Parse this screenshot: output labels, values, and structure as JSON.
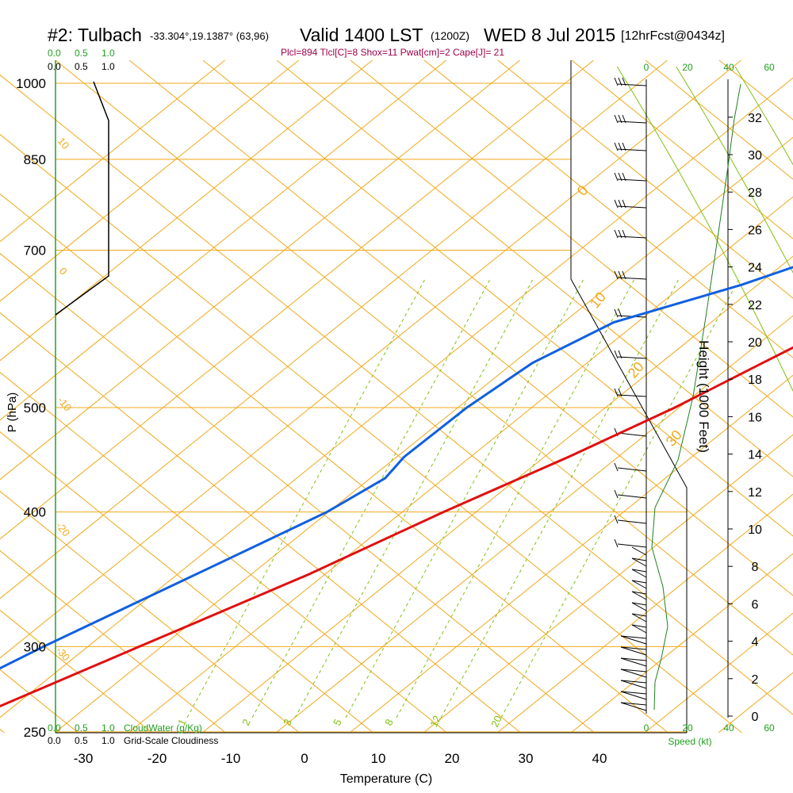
{
  "header": {
    "title_main": "#2: Tulbach",
    "location": "-33.304°,19.1387° (63,96)",
    "valid": "Valid 1400 LST",
    "zulu": "(1200Z)",
    "date": "WED 8 Jul 2015",
    "forecast": "[12hrFcst@0434z]",
    "indices": "Plcl=894 Tlcl[C]=8 Shox=11 Pwat[cm]=2 Cape[J]= 21"
  },
  "colors": {
    "isobar": "#f0a818",
    "isotherm": "#f0a818",
    "dry_adiabat": "#80c010",
    "moist_adiabat": "#80c010",
    "mixing_ratio": "#80c010",
    "temperature": "#e01010",
    "dewpoint": "#1060e0",
    "green_label": "#20a020",
    "indices_text": "#a0004a",
    "height_curve": "#208020",
    "axis": "#000000"
  },
  "chart_data": {
    "type": "line",
    "xlabel": "Temperature (C)",
    "ylabel": "P (hPa)",
    "x_ticks": [
      -30,
      -20,
      -10,
      0,
      10,
      20,
      30,
      40
    ],
    "pressure_ticks": [
      250,
      300,
      400,
      500,
      700,
      850,
      1000
    ],
    "xlim": [
      -34,
      36
    ],
    "ylim": [
      1000,
      250
    ],
    "isotherm_labels": [
      "0",
      "10",
      "20",
      "30"
    ],
    "left_isotherm_labels": [
      "10",
      "0",
      "-10",
      "-20",
      "-30"
    ],
    "mixing_ratio_labels": [
      "1",
      "2",
      "3",
      "5",
      "8",
      "12",
      "20"
    ],
    "temperature_profile": [
      {
        "p": 1000,
        "t": 19.3
      },
      {
        "p": 990,
        "t": 17.6
      },
      {
        "p": 975,
        "t": 15.4
      },
      {
        "p": 950,
        "t": 13.6
      },
      {
        "p": 925,
        "t": 12.3
      },
      {
        "p": 900,
        "t": 11.9
      },
      {
        "p": 880,
        "t": 12.9
      },
      {
        "p": 850,
        "t": 14.1
      },
      {
        "p": 800,
        "t": 14.5
      },
      {
        "p": 750,
        "t": 14.6
      },
      {
        "p": 700,
        "t": 13.6
      },
      {
        "p": 650,
        "t": 11.3
      },
      {
        "p": 600,
        "t": 7.9
      },
      {
        "p": 550,
        "t": 3.8
      },
      {
        "p": 500,
        "t": -0.6
      },
      {
        "p": 450,
        "t": -6.7
      },
      {
        "p": 400,
        "t": -14.4
      },
      {
        "p": 350,
        "t": -22.2
      },
      {
        "p": 300,
        "t": -33.0
      },
      {
        "p": 260,
        "t": -43.0
      }
    ],
    "dewpoint_profile": [
      {
        "p": 1000,
        "td": 11.8
      },
      {
        "p": 985,
        "td": 11.0
      },
      {
        "p": 960,
        "td": 11.3
      },
      {
        "p": 920,
        "td": 11.5
      },
      {
        "p": 900,
        "td": 11.5
      },
      {
        "p": 880,
        "td": 8.4
      },
      {
        "p": 850,
        "td": 6.9
      },
      {
        "p": 800,
        "td": 2.4
      },
      {
        "p": 750,
        "td": -0.8
      },
      {
        "p": 700,
        "td": -4.3
      },
      {
        "p": 650,
        "td": -12.2
      },
      {
        "p": 600,
        "td": -23.2
      },
      {
        "p": 550,
        "td": -27.4
      },
      {
        "p": 500,
        "td": -28.8
      },
      {
        "p": 450,
        "td": -29.0
      },
      {
        "p": 430,
        "td": -28.0
      },
      {
        "p": 400,
        "td": -30.2
      },
      {
        "p": 350,
        "td": -37.5
      },
      {
        "p": 300,
        "td": -46.0
      },
      {
        "p": 260,
        "td": -53.0
      }
    ],
    "surface_temperature": 19.3,
    "surface_dewpoint": 11.8,
    "height_axis": {
      "label": "Height (1000 Feet)",
      "ticks": [
        0,
        2,
        4,
        6,
        8,
        10,
        12,
        14,
        16,
        18,
        20,
        22,
        24,
        26,
        28,
        30,
        32
      ]
    },
    "wind_speed_axis": {
      "label": "Speed (kt)",
      "ticks_black": [
        "0",
        "20",
        "40"
      ],
      "ticks_green": [
        "20",
        "40",
        "60"
      ]
    },
    "cloud_axis": {
      "cloud_water_label": "CloudWater (g/Kg)",
      "cloudiness_label": "Grid-Scale Cloudiness",
      "ticks": [
        "0.0",
        "0.5",
        "1.0"
      ]
    }
  }
}
